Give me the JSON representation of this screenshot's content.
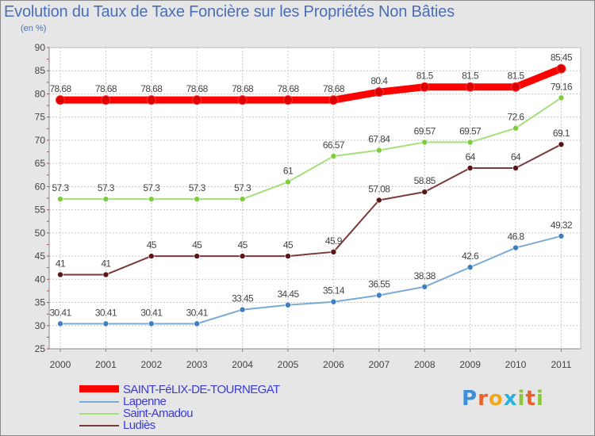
{
  "chart_data": {
    "type": "line",
    "title": "Evolution du Taux de Taxe Foncière sur les Propriétés Non Bâties",
    "ylabel": "(en %)",
    "xlabel": "",
    "ylim": [
      25,
      90
    ],
    "yticks": [
      "25",
      "30",
      "35",
      "40",
      "45",
      "50",
      "55",
      "60",
      "65",
      "70",
      "75",
      "80",
      "85",
      "90"
    ],
    "categories": [
      "2000",
      "2001",
      "2002",
      "2003",
      "2004",
      "2005",
      "2006",
      "2007",
      "2008",
      "2009",
      "2010",
      "2011"
    ],
    "series": [
      {
        "name": "SAINT-FéLIX-DE-TOURNEGAT",
        "color": "#ff0000",
        "marker": "#dd0000",
        "values": [
          78.68,
          78.68,
          78.68,
          78.68,
          78.68,
          78.68,
          78.68,
          80.4,
          81.5,
          81.5,
          81.5,
          85.45
        ],
        "labels": [
          "78.68",
          "78.68",
          "78.68",
          "78.68",
          "78.68",
          "78.68",
          "78.68",
          "80.4",
          "81.5",
          "81.5",
          "81.5",
          "85.45"
        ]
      },
      {
        "name": "Lapenne",
        "color": "#7aaad6",
        "marker": "#3f7fc0",
        "values": [
          30.41,
          30.41,
          30.41,
          30.41,
          33.45,
          34.45,
          35.14,
          36.55,
          38.38,
          42.6,
          46.8,
          49.32
        ],
        "labels": [
          "30.41",
          "30.41",
          "30.41",
          "30.41",
          "33.45",
          "34.45",
          "35.14",
          "36.55",
          "38.38",
          "42.6",
          "46.8",
          "49.32"
        ]
      },
      {
        "name": "Saint-Amadou",
        "color": "#a6e07a",
        "marker": "#7ccd3a",
        "values": [
          57.3,
          57.3,
          57.3,
          57.3,
          57.3,
          61,
          66.57,
          67.84,
          69.57,
          69.57,
          72.6,
          79.16
        ],
        "labels": [
          "57.3",
          "57.3",
          "57.3",
          "57.3",
          "57.3",
          "61",
          "66.57",
          "67.84",
          "69.57",
          "69.57",
          "72.6",
          "79.16"
        ]
      },
      {
        "name": "Ludiès",
        "color": "#7a3a3a",
        "marker": "#5a1515",
        "values": [
          41,
          41,
          45,
          45,
          45,
          45,
          45.9,
          57.08,
          58.85,
          64,
          64,
          69.1
        ],
        "labels": [
          "41",
          "41",
          "45",
          "45",
          "45",
          "45",
          "45.9",
          "57.08",
          "58.85",
          "64",
          "64",
          "69.1"
        ]
      }
    ],
    "grid": true,
    "legend": "bottom-left"
  },
  "brand": {
    "letters": [
      "P",
      "r",
      "o",
      "x",
      "i",
      "t",
      "i"
    ],
    "colors": [
      "#3c8fd8",
      "#e8622a",
      "#f2a81e",
      "#2bb3e0",
      "#8cc63e",
      "#e8622a",
      "#8cc63e"
    ]
  }
}
